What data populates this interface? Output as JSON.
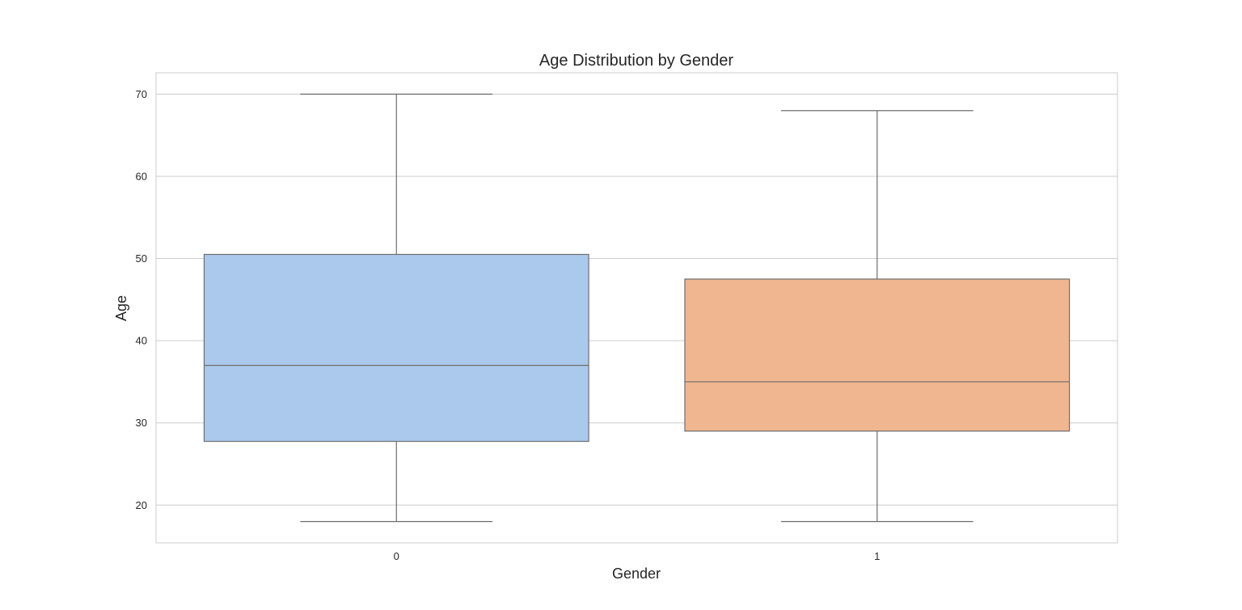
{
  "chart_data": {
    "type": "box",
    "title": "Age Distribution by Gender",
    "xlabel": "Gender",
    "ylabel": "Age",
    "categories": [
      "0",
      "1"
    ],
    "boxes": [
      {
        "category": "0",
        "min": 18,
        "q1": 27.75,
        "median": 37,
        "q3": 50.5,
        "max": 70,
        "color": "#abc9ed"
      },
      {
        "category": "1",
        "min": 18,
        "q1": 29,
        "median": 35,
        "q3": 47.5,
        "max": 68,
        "color": "#f0b690"
      }
    ],
    "yticks": [
      20,
      30,
      40,
      50,
      60,
      70
    ],
    "ylim": [
      15.4,
      72.6
    ],
    "grid": "horizontal",
    "line_color": "#6e6e6e",
    "grid_color": "#cccccc",
    "frame_color": "#cccccc"
  }
}
